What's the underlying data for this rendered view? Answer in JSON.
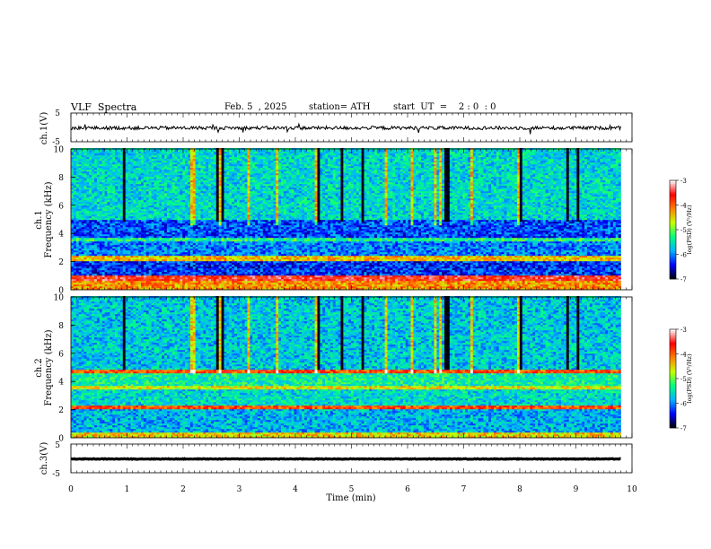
{
  "header": {
    "title": "VLF  Spectra",
    "date": "Feb. 5  , 2025",
    "station": "station= ATH",
    "start_ut": "start  UT  =    2 : 0  : 0"
  },
  "panels": {
    "ch1_wave": {
      "ylabel": "ch.1(V)",
      "ticks": [
        "5",
        "-5"
      ]
    },
    "ch1_spec": {
      "ylabel_ch": "ch.1",
      "ylabel_freq": "Frequency  (kHz)"
    },
    "ch2_spec": {
      "ylabel_ch": "ch.2",
      "ylabel_freq": "Frequency  (kHz)"
    },
    "ch3_wave": {
      "ylabel": "ch.3(V)",
      "ticks": [
        "5",
        "-5"
      ]
    }
  },
  "colorbar": {
    "label": "log(PSD) (V²/Hz)",
    "ticks": [
      "-3",
      "-4",
      "-5",
      "-6",
      "-7"
    ],
    "range": [
      -7,
      -3
    ],
    "colors": [
      "#000000",
      "#0000ff",
      "#00b4ff",
      "#00ff80",
      "#c8ff00",
      "#ff8000",
      "#ff0000",
      "#ffffff"
    ]
  },
  "chart_data": {
    "type": "heatmap",
    "xlabel": "Time  (min)",
    "xlim": [
      0,
      10
    ],
    "x_ticks": [
      "0",
      "1",
      "2",
      "3",
      "4",
      "5",
      "6",
      "7",
      "8",
      "9",
      "10"
    ],
    "data_end_min": 9.8,
    "waveforms": [
      {
        "name": "ch.1(V)",
        "ylim": [
          -5,
          5
        ],
        "mean_level": -0.2,
        "fluctuation": 0.6
      },
      {
        "name": "ch.3(V)",
        "ylim": [
          -5,
          5
        ],
        "mean_level": -0.2,
        "fluctuation": 0.1
      }
    ],
    "spectrograms": [
      {
        "name": "ch.1",
        "ylim_khz": [
          0,
          10
        ],
        "y_ticks": [
          "0",
          "2",
          "4",
          "6",
          "8",
          "10"
        ],
        "band_levels": [
          {
            "f0": 0.0,
            "f1": 0.6,
            "log_psd": -4.2
          },
          {
            "f0": 0.6,
            "f1": 1.0,
            "log_psd": -3.6
          },
          {
            "f0": 1.0,
            "f1": 2.0,
            "log_psd": -6.3
          },
          {
            "f0": 2.0,
            "f1": 2.4,
            "log_psd": -4.4
          },
          {
            "f0": 2.4,
            "f1": 3.4,
            "log_psd": -6.0
          },
          {
            "f0": 3.4,
            "f1": 3.7,
            "log_psd": -5.3
          },
          {
            "f0": 3.7,
            "f1": 4.9,
            "log_psd": -6.2
          },
          {
            "f0": 4.9,
            "f1": 10.0,
            "log_psd": -5.6
          }
        ]
      },
      {
        "name": "ch.2",
        "ylim_khz": [
          0,
          10
        ],
        "y_ticks": [
          "0",
          "2",
          "4",
          "6",
          "8",
          "10"
        ],
        "band_levels": [
          {
            "f0": 0.0,
            "f1": 0.4,
            "log_psd": -4.5
          },
          {
            "f0": 0.4,
            "f1": 2.0,
            "log_psd": -5.8
          },
          {
            "f0": 2.0,
            "f1": 2.3,
            "log_psd": -3.9
          },
          {
            "f0": 2.3,
            "f1": 3.4,
            "log_psd": -5.6
          },
          {
            "f0": 3.4,
            "f1": 3.7,
            "log_psd": -4.6
          },
          {
            "f0": 3.7,
            "f1": 4.6,
            "log_psd": -5.4
          },
          {
            "f0": 4.6,
            "f1": 4.8,
            "log_psd": -3.9
          },
          {
            "f0": 4.8,
            "f1": 10.0,
            "log_psd": -5.7
          }
        ]
      }
    ]
  }
}
